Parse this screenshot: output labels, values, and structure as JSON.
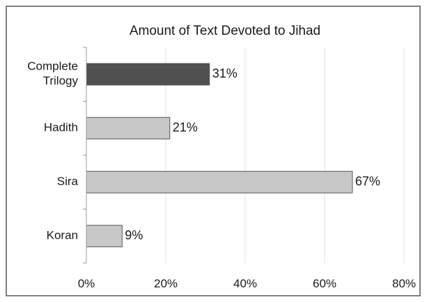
{
  "chart_data": {
    "type": "bar",
    "orientation": "horizontal",
    "title": "Amount of Text Devoted to Jihad",
    "categories": [
      [
        "Complete",
        "Trilogy"
      ],
      [
        "Hadith"
      ],
      [
        "Sira"
      ],
      [
        "Koran"
      ]
    ],
    "values": [
      31,
      21,
      67,
      9
    ],
    "data_labels": [
      "31%",
      "21%",
      "67%",
      "9%"
    ],
    "bar_colors": [
      "#505050",
      "#c8c8c8",
      "#c8c8c8",
      "#c8c8c8"
    ],
    "xlim": [
      0,
      80
    ],
    "xticks": [
      0,
      20,
      40,
      60,
      80
    ],
    "xtick_labels": [
      "0%",
      "20%",
      "40%",
      "60%",
      "80%"
    ],
    "grid": "vertical",
    "legend": "none",
    "xlabel": "",
    "ylabel": ""
  }
}
